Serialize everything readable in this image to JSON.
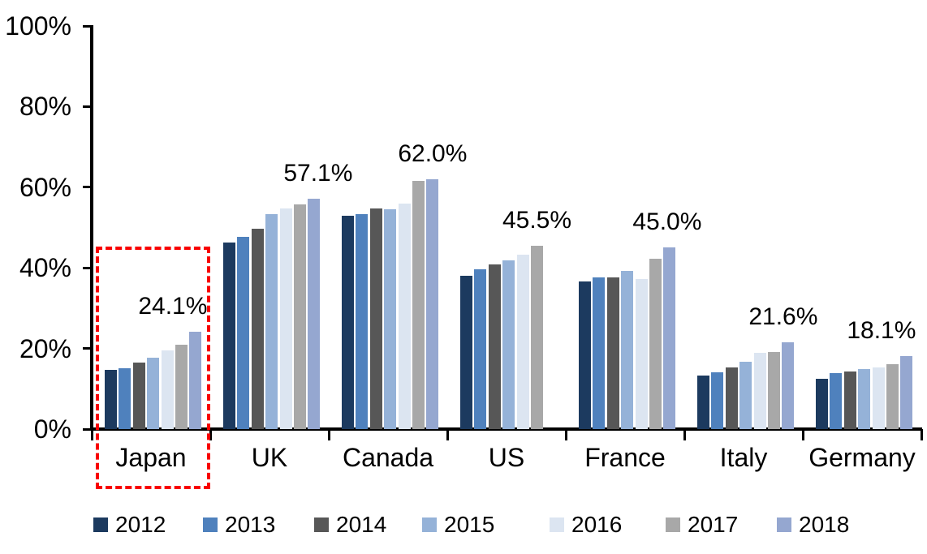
{
  "chart_data": {
    "type": "bar",
    "title": "",
    "xlabel": "",
    "ylabel": "",
    "categories": [
      "Japan",
      "UK",
      "Canada",
      "US",
      "France",
      "Italy",
      "Germany"
    ],
    "series": [
      {
        "name": "2012",
        "color": "#1C3A5F",
        "values": [
          14.7,
          46.3,
          52.9,
          38.0,
          36.6,
          13.2,
          12.4
        ]
      },
      {
        "name": "2013",
        "color": "#4F81BD",
        "values": [
          15.0,
          47.7,
          53.3,
          39.7,
          37.7,
          14.0,
          13.9
        ]
      },
      {
        "name": "2014",
        "color": "#575757",
        "values": [
          16.5,
          49.8,
          54.7,
          40.8,
          37.6,
          15.3,
          14.3
        ]
      },
      {
        "name": "2015",
        "color": "#95B2D8",
        "values": [
          17.8,
          53.3,
          54.5,
          41.9,
          39.2,
          16.8,
          14.8
        ]
      },
      {
        "name": "2016",
        "color": "#DCE5F1",
        "values": [
          19.5,
          54.7,
          56.0,
          43.3,
          37.3,
          19.0,
          15.3
        ]
      },
      {
        "name": "2017",
        "color": "#A8A8A8",
        "values": [
          20.9,
          55.8,
          61.6,
          45.5,
          42.2,
          19.2,
          16.0
        ]
      },
      {
        "name": "2018",
        "color": "#95A7D0",
        "values": [
          24.1,
          57.1,
          62.0,
          null,
          45.0,
          21.6,
          18.1
        ]
      }
    ],
    "data_labels": [
      "24.1%",
      "57.1%",
      "62.0%",
      "45.5%",
      "45.0%",
      "21.6%",
      "18.1%"
    ],
    "y_ticks": [
      "0%",
      "20%",
      "40%",
      "60%",
      "80%",
      "100%"
    ],
    "ylim": [
      0,
      100
    ],
    "grid": false,
    "legend_position": "bottom",
    "legend_entries": [
      "2012",
      "2013",
      "2014",
      "2015",
      "2016",
      "2017",
      "2018"
    ],
    "annotation": {
      "type": "dashed-box",
      "target_category": "Japan",
      "color": "#FF0000"
    }
  }
}
